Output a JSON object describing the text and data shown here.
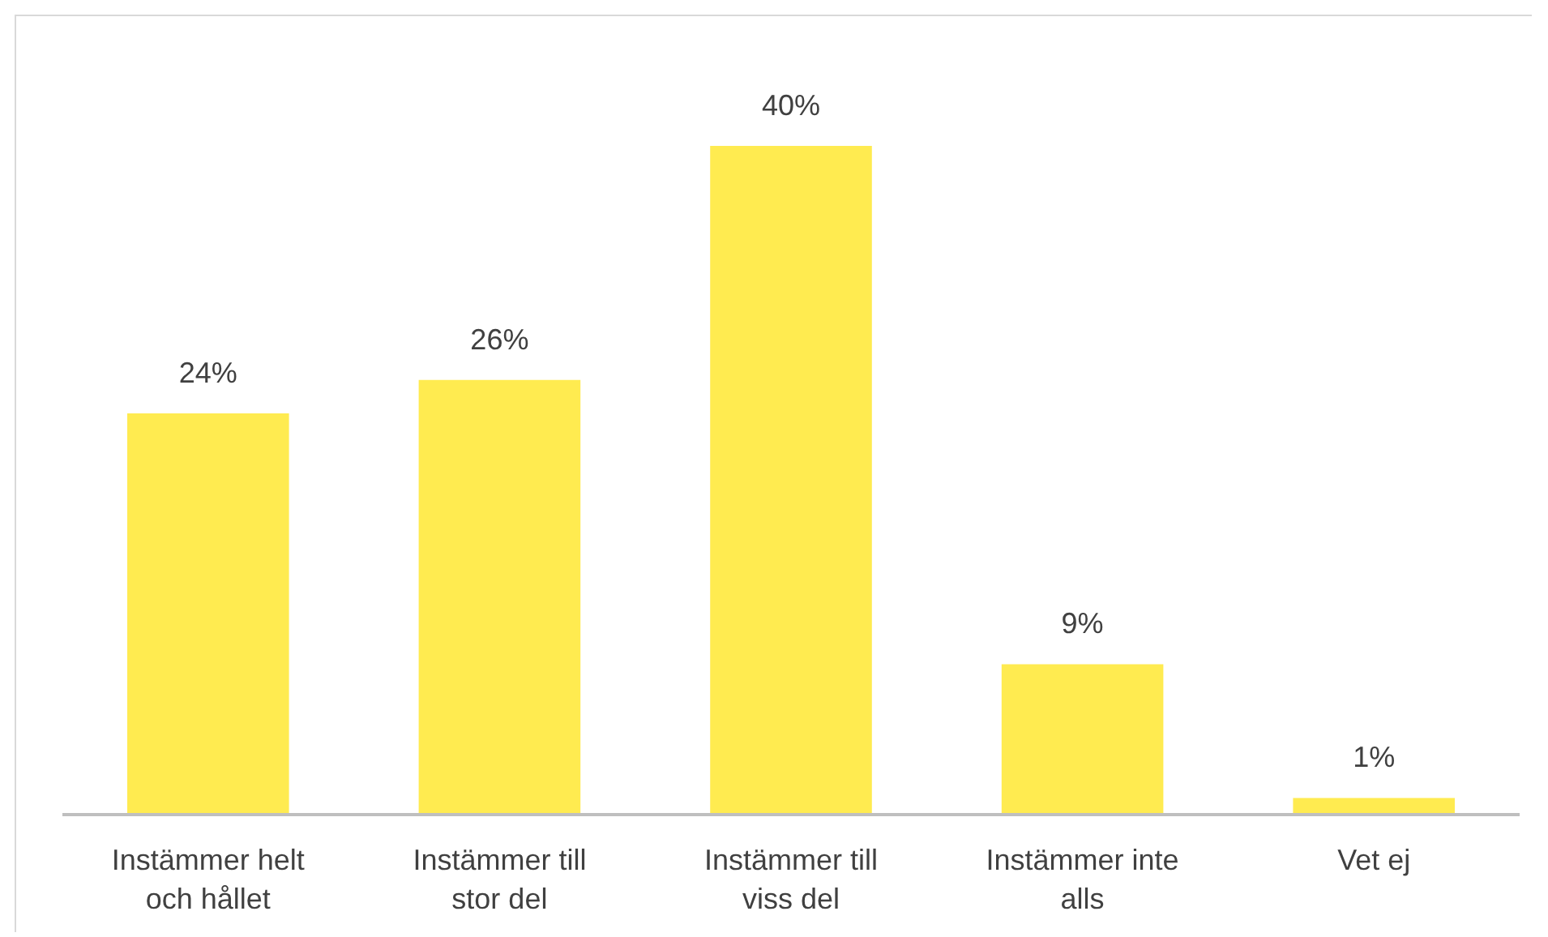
{
  "chart_data": {
    "type": "bar",
    "categories": [
      "Instämmer helt och hållet",
      "Instämmer till stor del",
      "Instämmer till viss del",
      "Instämmer inte alls",
      "Vet ej"
    ],
    "values": [
      24,
      26,
      40,
      9,
      1
    ],
    "color": "#ffeb50",
    "value_labels": [
      "24%",
      "26%",
      "40%",
      "9%",
      "1%"
    ]
  }
}
